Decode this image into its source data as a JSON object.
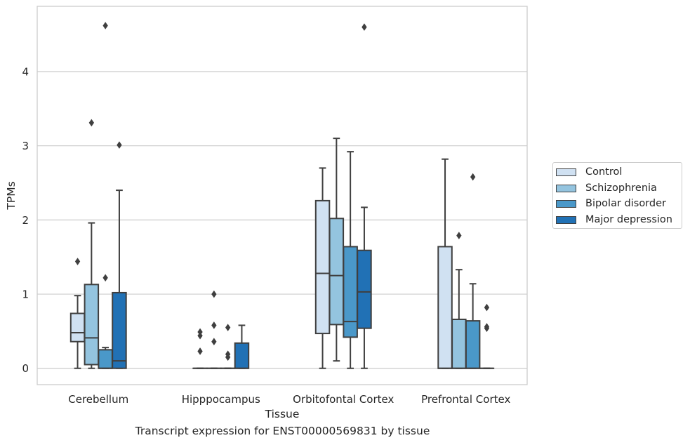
{
  "caption": "Transcript expression for ENST00000569831 by tissue",
  "colors": {
    "Control": "#d0e1f2",
    "Schizophrenia": "#94c4df",
    "Bipolar disorder": "#4a98c9",
    "Major depression": "#2171b5",
    "grid": "#cccccc",
    "box_line": "#3f3f3f"
  },
  "legend": [
    "Control",
    "Schizophrenia",
    "Bipolar disorder",
    "Major depression"
  ],
  "chart_data": {
    "type": "box",
    "title": "",
    "xlabel": "Tissue",
    "ylabel": "TPMs",
    "ylim": [
      -0.22,
      4.88
    ],
    "yticks": [
      0,
      1,
      2,
      3,
      4
    ],
    "grid": true,
    "legend_position": "right",
    "categories": [
      "Cerebellum",
      "Hipppocampus",
      "Orbitofontal Cortex",
      "Prefrontal Cortex"
    ],
    "series": [
      {
        "name": "Control",
        "boxes": [
          {
            "whisker_low": 0,
            "q1": 0.36,
            "median": 0.48,
            "q3": 0.74,
            "whisker_high": 0.98,
            "outliers": [
              1.44
            ]
          },
          {
            "whisker_low": 0,
            "q1": 0,
            "median": 0,
            "q3": 0,
            "whisker_high": 0,
            "outliers": [
              0.23,
              0.44,
              0.49
            ]
          },
          {
            "whisker_low": 0,
            "q1": 0.47,
            "median": 1.28,
            "q3": 2.26,
            "whisker_high": 2.7,
            "outliers": []
          },
          {
            "whisker_low": 0,
            "q1": 0,
            "median": 0,
            "q3": 1.64,
            "whisker_high": 2.82,
            "outliers": []
          }
        ]
      },
      {
        "name": "Schizophrenia",
        "boxes": [
          {
            "whisker_low": 0,
            "q1": 0.05,
            "median": 0.41,
            "q3": 1.13,
            "whisker_high": 1.96,
            "outliers": [
              3.31
            ]
          },
          {
            "whisker_low": 0,
            "q1": 0,
            "median": 0,
            "q3": 0,
            "whisker_high": 0,
            "outliers": [
              0.36,
              0.58,
              1.0
            ]
          },
          {
            "whisker_low": 0.1,
            "q1": 0.59,
            "median": 1.25,
            "q3": 2.02,
            "whisker_high": 3.1,
            "outliers": []
          },
          {
            "whisker_low": 0,
            "q1": 0,
            "median": 0,
            "q3": 0.66,
            "whisker_high": 1.33,
            "outliers": [
              1.79
            ]
          }
        ]
      },
      {
        "name": "Bipolar disorder",
        "boxes": [
          {
            "whisker_low": 0,
            "q1": 0,
            "median": 0,
            "q3": 0.25,
            "whisker_high": 0.28,
            "outliers": [
              1.22,
              4.62
            ]
          },
          {
            "whisker_low": 0,
            "q1": 0,
            "median": 0,
            "q3": 0,
            "whisker_high": 0,
            "outliers": [
              0.15,
              0.19,
              0.55
            ]
          },
          {
            "whisker_low": 0,
            "q1": 0.42,
            "median": 0.63,
            "q3": 1.64,
            "whisker_high": 2.92,
            "outliers": []
          },
          {
            "whisker_low": 0,
            "q1": 0,
            "median": 0,
            "q3": 0.64,
            "whisker_high": 1.14,
            "outliers": [
              2.58
            ]
          }
        ]
      },
      {
        "name": "Major depression",
        "boxes": [
          {
            "whisker_low": 0,
            "q1": 0,
            "median": 0.1,
            "q3": 1.02,
            "whisker_high": 2.4,
            "outliers": [
              3.01
            ]
          },
          {
            "whisker_low": 0,
            "q1": 0,
            "median": 0,
            "q3": 0.34,
            "whisker_high": 0.58,
            "outliers": []
          },
          {
            "whisker_low": 0,
            "q1": 0.54,
            "median": 1.03,
            "q3": 1.59,
            "whisker_high": 2.17,
            "outliers": [
              4.6
            ]
          },
          {
            "whisker_low": 0,
            "q1": 0,
            "median": 0,
            "q3": 0,
            "whisker_high": 0,
            "outliers": [
              0.54,
              0.56,
              0.82
            ]
          }
        ]
      }
    ]
  }
}
